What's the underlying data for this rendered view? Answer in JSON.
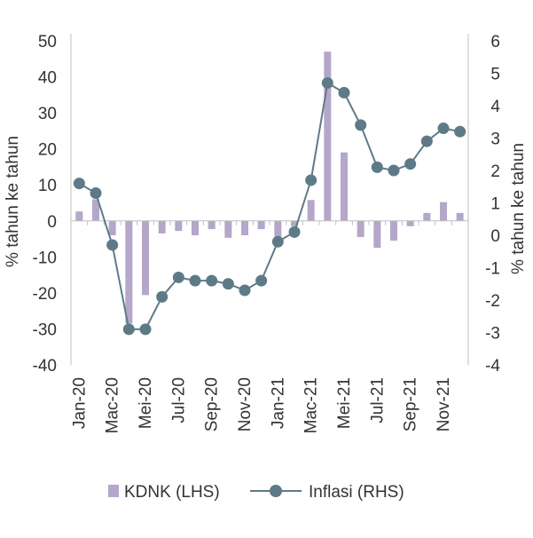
{
  "chart_data": {
    "type": "bar+line",
    "categories": [
      "Jan-20",
      "Feb-20",
      "Mar-20",
      "Apr-20",
      "Mei-20",
      "Jun-20",
      "Jul-20",
      "Agu-20",
      "Sep-20",
      "Okt-20",
      "Nov-20",
      "Des-20",
      "Jan-21",
      "Feb-21",
      "Mar-21",
      "Apr-21",
      "Mei-21",
      "Jun-21",
      "Jul-21",
      "Agu-21",
      "Sep-21",
      "Okt-21",
      "Nov-21",
      "Des-21"
    ],
    "x_tick_labels_shown": [
      "Jan-20",
      "Mac-20",
      "Mei-20",
      "Jul-20",
      "Sep-20",
      "Nov-20",
      "Jan-21",
      "Mac-21",
      "Mei-21",
      "Jul-21",
      "Sep-21",
      "Nov-21"
    ],
    "series": [
      {
        "name": "KDNK (LHS)",
        "kind": "bar",
        "axis": "left",
        "color": "#b4a7c9",
        "values": [
          2.6,
          6.0,
          -4.0,
          -28.5,
          -20.6,
          -3.5,
          -2.8,
          -4.0,
          -2.3,
          -4.7,
          -4.0,
          -2.3,
          -4.5,
          -1.5,
          5.8,
          47.0,
          19.0,
          -4.5,
          -7.5,
          -5.5,
          -1.5,
          2.2,
          5.2,
          2.2
        ]
      },
      {
        "name": "Inflasi (RHS)",
        "kind": "line",
        "axis": "right",
        "color": "#5f7a87",
        "values": [
          1.6,
          1.3,
          -0.3,
          -2.9,
          -2.9,
          -1.9,
          -1.3,
          -1.4,
          -1.4,
          -1.5,
          -1.7,
          -1.4,
          -0.2,
          0.1,
          1.7,
          4.7,
          4.4,
          3.4,
          2.1,
          2.0,
          2.2,
          2.9,
          3.3,
          3.2
        ]
      }
    ],
    "y_left": {
      "ylim": [
        -40,
        50
      ],
      "ticks": [
        "50",
        "40",
        "30",
        "20",
        "10",
        "0",
        "-10",
        "-20",
        "-30",
        "-40"
      ],
      "label": "% tahun ke tahun"
    },
    "y_right": {
      "ylim": [
        -4,
        6
      ],
      "ticks": [
        "6",
        "5",
        "4",
        "3",
        "2",
        "1",
        "0",
        "-1",
        "-2",
        "-3",
        "-4"
      ],
      "label": "% tahun ke tahun"
    },
    "legend": {
      "position": "bottom",
      "items": [
        "KDNK (LHS)",
        "Inflasi (RHS)"
      ]
    },
    "grid": false
  }
}
